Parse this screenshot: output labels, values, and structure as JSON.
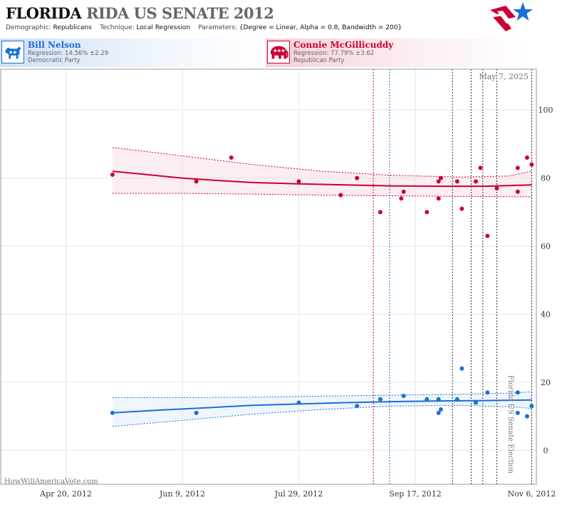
{
  "header": {
    "state": "FLORIDA",
    "race": "RIDA US SENATE 2012",
    "demographic_label": "Demographic:",
    "demographic_value": "Republicans",
    "technique_label": "Technique:",
    "technique_value": "Local Regression",
    "parameters_label": "Parameters:",
    "parameters_value": "{Degree = Linear, Alpha = 0.8, Bandwidth = 200}"
  },
  "candidates": {
    "dem": {
      "name": "Bill Nelson",
      "regression": "Regression: 14.56% ±2.29",
      "party": "Democratic Party",
      "color": "#1a6fd6"
    },
    "rep": {
      "name": "Connie McGillicuddy",
      "regression": "Regression: 77.79% ±3.62",
      "party": "Republican Party",
      "color": "#cc0033"
    }
  },
  "chart_data": {
    "type": "scatter",
    "date_label": "May 7, 2025",
    "watermark": "HowWillAmericaVote.com",
    "election_label": "Florida US Senate Election",
    "x_range": [
      "2012-03-23",
      "2012-11-08"
    ],
    "y_range": [
      -10,
      112
    ],
    "y_ticks": [
      0,
      20,
      40,
      60,
      80,
      100
    ],
    "x_ticks": [
      {
        "date": "2012-04-20",
        "label": "Apr 20, 2012"
      },
      {
        "date": "2012-06-09",
        "label": "Jun 9, 2012"
      },
      {
        "date": "2012-07-29",
        "label": "Jul 29, 2012"
      },
      {
        "date": "2012-09-17",
        "label": "Sep 17, 2012"
      },
      {
        "date": "2012-11-06",
        "label": "Nov 6, 2012"
      }
    ],
    "grid": true,
    "event_lines": [
      {
        "date": "2012-08-30",
        "color": "#cc0033"
      },
      {
        "date": "2012-09-06",
        "color": "#1a6fd6"
      },
      {
        "date": "2012-10-03",
        "color": "#333333"
      },
      {
        "date": "2012-10-11",
        "color": "#333333"
      },
      {
        "date": "2012-10-16",
        "color": "#333333"
      },
      {
        "date": "2012-10-22",
        "color": "#333333"
      },
      {
        "date": "2012-11-06",
        "color": "#333333"
      }
    ],
    "series": [
      {
        "name": "Connie McGillicuddy",
        "color": "#cc0033",
        "points": [
          [
            "2012-05-10",
            81
          ],
          [
            "2012-06-15",
            79
          ],
          [
            "2012-06-30",
            86
          ],
          [
            "2012-07-29",
            79
          ],
          [
            "2012-08-16",
            75
          ],
          [
            "2012-08-23",
            80
          ],
          [
            "2012-09-02",
            70
          ],
          [
            "2012-09-11",
            74
          ],
          [
            "2012-09-12",
            76
          ],
          [
            "2012-09-22",
            70
          ],
          [
            "2012-09-27",
            79
          ],
          [
            "2012-09-27",
            74
          ],
          [
            "2012-09-28",
            80
          ],
          [
            "2012-10-05",
            79
          ],
          [
            "2012-10-07",
            71
          ],
          [
            "2012-10-13",
            79
          ],
          [
            "2012-10-15",
            83
          ],
          [
            "2012-10-18",
            63
          ],
          [
            "2012-10-22",
            77
          ],
          [
            "2012-10-31",
            83
          ],
          [
            "2012-10-31",
            76
          ],
          [
            "2012-11-04",
            86
          ],
          [
            "2012-11-06",
            84
          ]
        ],
        "trend": [
          [
            "2012-05-10",
            82
          ],
          [
            "2012-05-25",
            81
          ],
          [
            "2012-06-09",
            80
          ],
          [
            "2012-06-24",
            79.3
          ],
          [
            "2012-07-09",
            78.7
          ],
          [
            "2012-07-29",
            78.3
          ],
          [
            "2012-08-18",
            78
          ],
          [
            "2012-09-07",
            77.7
          ],
          [
            "2012-09-27",
            77.6
          ],
          [
            "2012-10-17",
            77.6
          ],
          [
            "2012-11-06",
            78
          ]
        ],
        "upper": [
          [
            "2012-05-10",
            89
          ],
          [
            "2012-06-09",
            86.5
          ],
          [
            "2012-07-09",
            84
          ],
          [
            "2012-08-08",
            82
          ],
          [
            "2012-09-07",
            80.8
          ],
          [
            "2012-10-07",
            80.3
          ],
          [
            "2012-10-27",
            80.6
          ],
          [
            "2012-11-06",
            82
          ]
        ],
        "lower": [
          [
            "2012-05-10",
            75.5
          ],
          [
            "2012-06-09",
            75.5
          ],
          [
            "2012-07-09",
            75.3
          ],
          [
            "2012-08-08",
            75
          ],
          [
            "2012-09-07",
            74.8
          ],
          [
            "2012-10-07",
            74.6
          ],
          [
            "2012-10-27",
            74.5
          ],
          [
            "2012-11-06",
            74.5
          ]
        ]
      },
      {
        "name": "Bill Nelson",
        "color": "#1a6fd6",
        "points": [
          [
            "2012-05-10",
            11
          ],
          [
            "2012-06-15",
            11
          ],
          [
            "2012-07-29",
            14
          ],
          [
            "2012-08-23",
            13
          ],
          [
            "2012-09-02",
            15
          ],
          [
            "2012-09-12",
            16
          ],
          [
            "2012-09-22",
            15
          ],
          [
            "2012-09-27",
            15
          ],
          [
            "2012-09-27",
            11
          ],
          [
            "2012-09-28",
            12
          ],
          [
            "2012-10-05",
            15
          ],
          [
            "2012-10-07",
            24
          ],
          [
            "2012-10-13",
            14
          ],
          [
            "2012-10-18",
            17
          ],
          [
            "2012-10-31",
            17
          ],
          [
            "2012-10-31",
            11
          ],
          [
            "2012-11-04",
            10
          ],
          [
            "2012-11-06",
            13
          ]
        ],
        "trend": [
          [
            "2012-05-10",
            11
          ],
          [
            "2012-05-30",
            11.8
          ],
          [
            "2012-06-19",
            12.5
          ],
          [
            "2012-07-09",
            13.2
          ],
          [
            "2012-07-29",
            13.6
          ],
          [
            "2012-08-18",
            14
          ],
          [
            "2012-09-07",
            14.3
          ],
          [
            "2012-09-27",
            14.5
          ],
          [
            "2012-10-17",
            14.6
          ],
          [
            "2012-11-06",
            14.8
          ]
        ],
        "upper": [
          [
            "2012-05-10",
            15.5
          ],
          [
            "2012-06-09",
            15.5
          ],
          [
            "2012-07-09",
            15.6
          ],
          [
            "2012-08-08",
            15.9
          ],
          [
            "2012-09-07",
            16.2
          ],
          [
            "2012-10-07",
            16.5
          ],
          [
            "2012-10-27",
            16.8
          ],
          [
            "2012-11-06",
            17.2
          ]
        ],
        "lower": [
          [
            "2012-05-10",
            7
          ],
          [
            "2012-06-09",
            8.8
          ],
          [
            "2012-07-09",
            10.6
          ],
          [
            "2012-08-08",
            12
          ],
          [
            "2012-09-07",
            13
          ],
          [
            "2012-10-07",
            13.2
          ],
          [
            "2012-10-27",
            12.8
          ],
          [
            "2012-11-06",
            12.3
          ]
        ]
      }
    ]
  }
}
